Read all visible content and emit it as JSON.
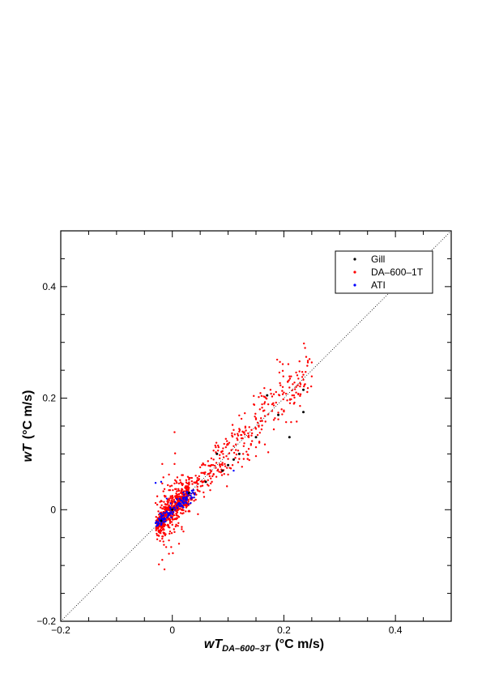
{
  "chart_data": {
    "type": "scatter",
    "xlabel": {
      "main": "wT",
      "sub": "DA–600–3T",
      "unit": "(°C  m/s)"
    },
    "ylabel": {
      "main": "wT",
      "unit": "(°C  m/s)"
    },
    "xlim": [
      -0.2,
      0.5
    ],
    "ylim": [
      -0.2,
      0.5
    ],
    "xticks": [
      -0.2,
      0,
      0.2,
      0.4
    ],
    "yticks": [
      -0.2,
      0,
      0.2,
      0.4
    ],
    "xtick_labels": [
      "−0.2",
      "0",
      "0.2",
      "0.4"
    ],
    "ytick_labels": [
      "−0.2",
      "0",
      "0.2",
      "0.4"
    ],
    "grid": false,
    "reference_line": "1:1 dotted",
    "legend_position": "top-right",
    "series": [
      {
        "name": "Gill",
        "color": "#000000",
        "points": [
          [
            -0.02,
            -0.02
          ],
          [
            0.0,
            0.0
          ],
          [
            0.03,
            0.03
          ],
          [
            0.06,
            0.05
          ],
          [
            0.08,
            0.1
          ],
          [
            0.09,
            0.07
          ],
          [
            0.1,
            0.08
          ],
          [
            0.12,
            0.1
          ],
          [
            0.15,
            0.13
          ],
          [
            0.17,
            0.205
          ],
          [
            0.19,
            0.17
          ],
          [
            0.21,
            0.13
          ],
          [
            0.235,
            0.215
          ],
          [
            0.235,
            0.175
          ],
          [
            0.11,
            0.09
          ]
        ]
      },
      {
        "name": "DA–600–1T",
        "color": "#ff0000",
        "points": []
      },
      {
        "name": "ATI",
        "color": "#0000ff",
        "points": [
          [
            -0.03,
            0.048
          ],
          [
            -0.02,
            0.05
          ],
          [
            0.11,
            0.07
          ],
          [
            -0.01,
            0.02
          ],
          [
            0.01,
            0.01
          ]
        ]
      }
    ]
  }
}
